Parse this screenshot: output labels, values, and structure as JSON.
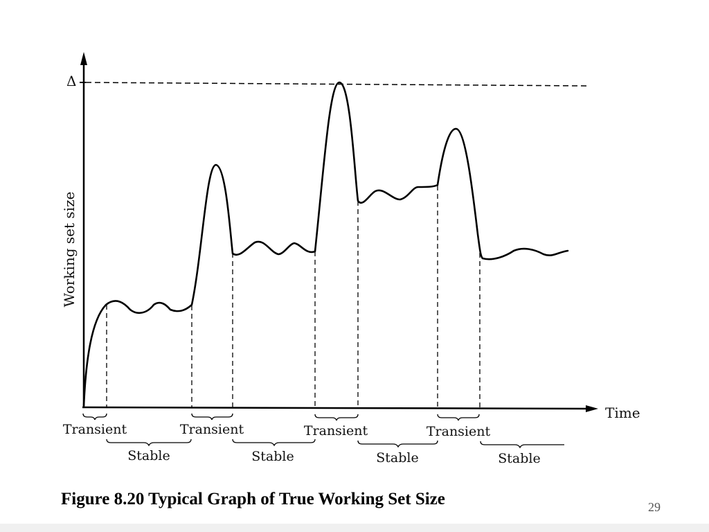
{
  "diagram": {
    "y_axis_title": "Working set size",
    "x_axis_title": "Time",
    "max_marker": "Δ",
    "phases": [
      {
        "label": "Transient"
      },
      {
        "label": "Stable"
      },
      {
        "label": "Transient"
      },
      {
        "label": "Stable"
      },
      {
        "label": "Transient"
      },
      {
        "label": "Stable"
      },
      {
        "label": "Transient"
      },
      {
        "label": "Stable"
      }
    ]
  },
  "caption": "Figure 8.20 Typical Graph of True Working Set Size",
  "page_number": "29"
}
